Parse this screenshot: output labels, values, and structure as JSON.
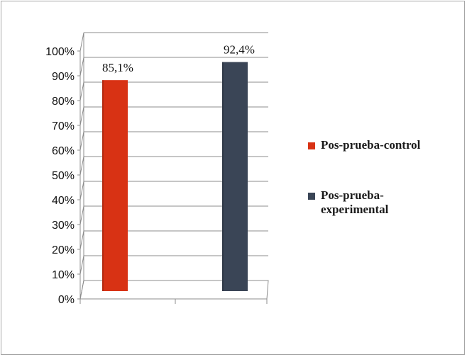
{
  "chart_data": {
    "type": "bar",
    "categories": [
      "Pos-prueba-control",
      "Pos-prueba-experimental"
    ],
    "series": [
      {
        "name": "Pos-prueba-control",
        "values": [
          85.1,
          null
        ],
        "color": "#d83214",
        "label": "85,1%"
      },
      {
        "name": "Pos-prueba-experimental",
        "values": [
          null,
          92.4
        ],
        "color": "#3a4556",
        "label": "92,4%"
      }
    ],
    "yticks": [
      "0%",
      "10%",
      "20%",
      "30%",
      "40%",
      "50%",
      "60%",
      "70%",
      "80%",
      "90%",
      "100%"
    ],
    "ylim": [
      0,
      100
    ],
    "grid": true,
    "legend": {
      "position": "right",
      "entries": [
        {
          "text": "Pos-prueba-control",
          "color": "#d83214"
        },
        {
          "text": "Pos-prueba-experimental",
          "line1": "Pos-prueba-",
          "line2": "experimental",
          "color": "#3a4556"
        }
      ]
    }
  }
}
